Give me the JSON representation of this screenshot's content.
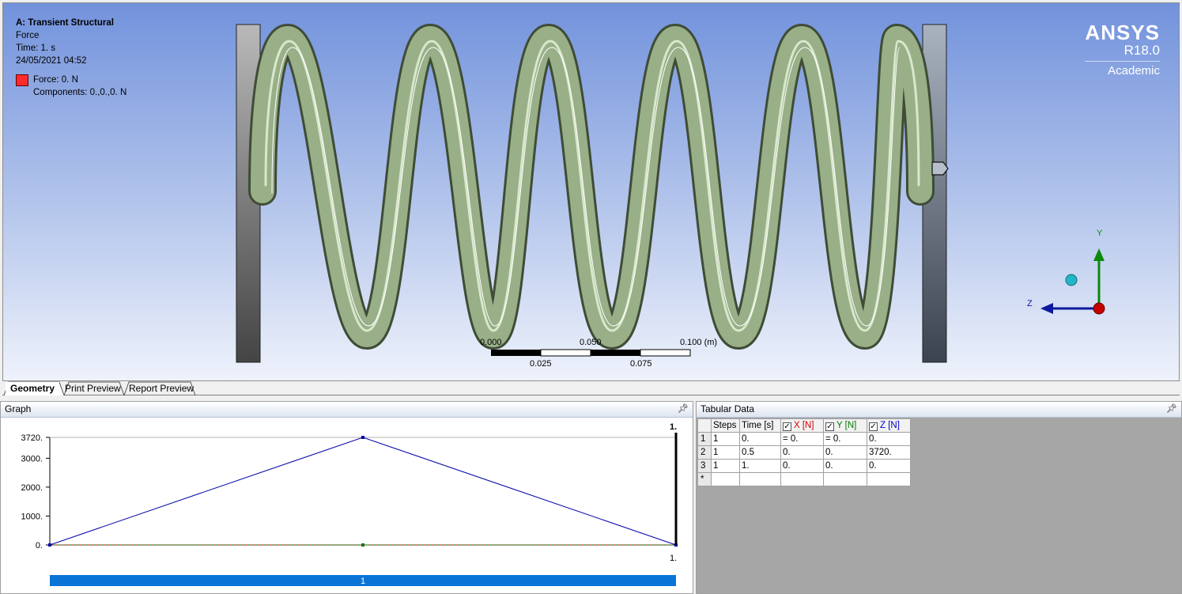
{
  "viewport": {
    "header": {
      "title": "A: Transient Structural",
      "subtitle": "Force",
      "time": "Time: 1. s",
      "date": "24/05/2021 04:52"
    },
    "legend": {
      "label": "Force: 0. N",
      "components": "Components: 0.,0.,0. N",
      "color": "#ff2b2b"
    },
    "brand": {
      "name": "ANSYS",
      "version": "R18.0",
      "edition": "Academic"
    },
    "scale_bar": {
      "ticks_top": [
        "0.000",
        "0.050",
        "0.100 (m)"
      ],
      "ticks_bottom": [
        "0.025",
        "0.075"
      ]
    },
    "triad": {
      "y_label": "Y",
      "z_label": "Z"
    }
  },
  "view_tabs": [
    "Geometry",
    "Print Preview",
    "Report Preview"
  ],
  "graph": {
    "title": "Graph",
    "pin_icon": "pin-icon",
    "step_bar_label": "1",
    "top_marker": "1.",
    "bottom_marker": "1."
  },
  "chart_data": {
    "type": "line",
    "x": [
      0,
      0.5,
      1
    ],
    "series": [
      {
        "values": [
          0,
          3720,
          0
        ],
        "color": "#0000a8"
      },
      {
        "values": [
          0,
          0,
          0
        ],
        "color": "#007a00"
      },
      {
        "values": [
          0,
          0,
          0
        ],
        "color": "#c00000"
      }
    ],
    "y_ticks": [
      "0.",
      "1000.",
      "2000.",
      "3000.",
      "3720."
    ],
    "y_tick_values": [
      0,
      1000,
      2000,
      3000,
      3720
    ],
    "ylim": [
      0,
      3720
    ],
    "xlim": [
      0,
      1
    ]
  },
  "tabular": {
    "title": "Tabular Data",
    "columns": [
      "Steps",
      "Time [s]",
      "X [N]",
      "Y [N]",
      "Z [N]"
    ],
    "rows": [
      {
        "num": "1",
        "steps": "1",
        "time": "0.",
        "x": "= 0.",
        "y": "= 0.",
        "z": "0."
      },
      {
        "num": "2",
        "steps": "1",
        "time": "0.5",
        "x": "0.",
        "y": "0.",
        "z": "3720."
      },
      {
        "num": "3",
        "steps": "1",
        "time": "1.",
        "x": "0.",
        "y": "0.",
        "z": "0."
      }
    ],
    "new_row_marker": "*"
  }
}
